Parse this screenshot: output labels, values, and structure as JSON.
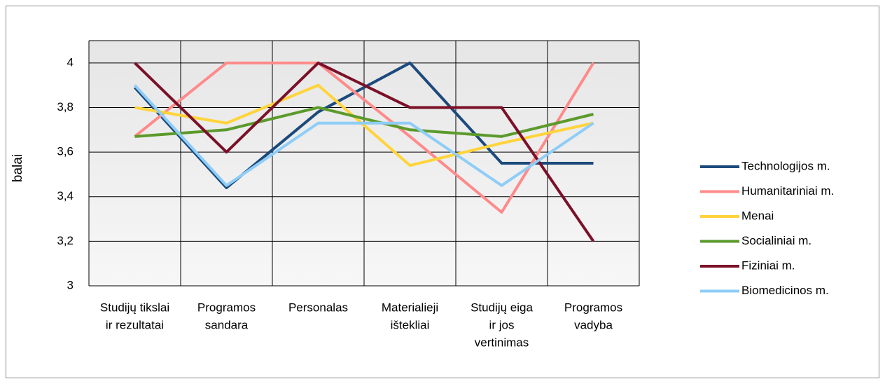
{
  "chart_data": {
    "type": "line",
    "ylabel": "balai",
    "categories": [
      [
        "Studijų tikslai",
        "ir rezultatai"
      ],
      [
        "Programos",
        "sandara"
      ],
      [
        "Personalas"
      ],
      [
        "Materialieji",
        "ištekliai"
      ],
      [
        "Studijų eiga",
        "ir jos",
        "vertinimas"
      ],
      [
        "Programos",
        "vadyba"
      ]
    ],
    "series": [
      {
        "name": "Technologijos m.",
        "color": "#1c4a7c",
        "values": [
          3.89,
          3.44,
          3.78,
          4.0,
          3.55,
          3.55
        ]
      },
      {
        "name": "Humanitariniai m.",
        "color": "#ff8a8a",
        "values": [
          3.67,
          4.0,
          4.0,
          3.67,
          3.33,
          4.0
        ]
      },
      {
        "name": "Menai",
        "color": "#ffd43b",
        "values": [
          3.8,
          3.73,
          3.9,
          3.54,
          3.64,
          3.73
        ]
      },
      {
        "name": "Socialiniai m.",
        "color": "#5b9a2b",
        "values": [
          3.67,
          3.7,
          3.8,
          3.7,
          3.67,
          3.77
        ]
      },
      {
        "name": "Fiziniai m.",
        "color": "#7b1028",
        "values": [
          4.0,
          3.6,
          4.0,
          3.8,
          3.8,
          3.2
        ]
      },
      {
        "name": "Biomedicinos m.",
        "color": "#8ecdf7",
        "values": [
          3.9,
          3.45,
          3.73,
          3.73,
          3.45,
          3.73
        ]
      }
    ],
    "ylim": [
      3,
      4.1
    ],
    "yticks": [
      3,
      {
        "value": 3.2,
        "label": "3,2"
      },
      {
        "value": 3.4,
        "label": "3,4"
      },
      {
        "value": 3.6,
        "label": "3,6"
      },
      {
        "value": 3.8,
        "label": "3,8"
      },
      4
    ],
    "grid": true,
    "legend": "right"
  }
}
